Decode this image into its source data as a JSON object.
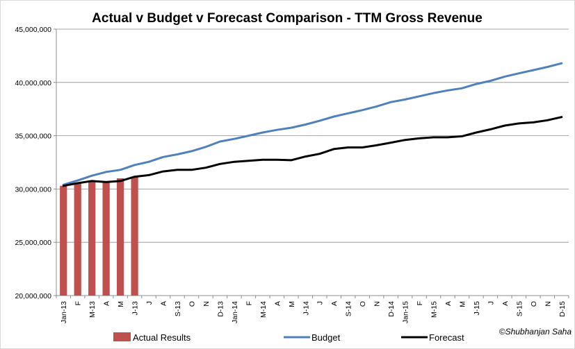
{
  "chart_data": {
    "type": "bar+line",
    "title": "Actual v Budget v Forecast Comparison - TTM Gross Revenue",
    "credit": "©Shubhanjan Saha",
    "ylim": [
      20000000,
      45000000
    ],
    "yticks": [
      "20,000,000",
      "25,000,000",
      "30,000,000",
      "35,000,000",
      "40,000,000",
      "45,000,000"
    ],
    "ytick_values": [
      20000000,
      25000000,
      30000000,
      35000000,
      40000000,
      45000000
    ],
    "grid": true,
    "legend_position": "bottom",
    "categories": [
      "Jan-13",
      "F",
      "M-13",
      "A",
      "M",
      "J-13",
      "J",
      "A",
      "S-13",
      "O",
      "N",
      "D-13",
      "Jan-14",
      "F",
      "M-14",
      "A",
      "M",
      "J-14",
      "J",
      "A",
      "S-14",
      "O",
      "N",
      "D-14",
      "Jan-15",
      "F",
      "M-15",
      "A",
      "M",
      "J-15",
      "J",
      "A",
      "S-15",
      "O",
      "N",
      "D-15"
    ],
    "series": [
      {
        "name": "Actual Results",
        "kind": "bar",
        "color": "#c0504d",
        "values": [
          30300000,
          30550000,
          30800000,
          30750000,
          31000000,
          31150000,
          null,
          null,
          null,
          null,
          null,
          null,
          null,
          null,
          null,
          null,
          null,
          null,
          null,
          null,
          null,
          null,
          null,
          null,
          null,
          null,
          null,
          null,
          null,
          null,
          null,
          null,
          null,
          null,
          null,
          null
        ]
      },
      {
        "name": "Budget",
        "kind": "line",
        "color": "#4f81bd",
        "values": [
          30400000,
          30800000,
          31250000,
          31600000,
          31800000,
          32250000,
          32550000,
          33000000,
          33250000,
          33550000,
          33950000,
          34450000,
          34700000,
          35000000,
          35300000,
          35550000,
          35750000,
          36050000,
          36400000,
          36800000,
          37100000,
          37400000,
          37750000,
          38150000,
          38400000,
          38700000,
          39000000,
          39250000,
          39450000,
          39850000,
          40150000,
          40550000,
          40850000,
          41150000,
          41450000,
          41800000
        ]
      },
      {
        "name": "Forecast",
        "kind": "line",
        "color": "#000000",
        "values": [
          30300000,
          30550000,
          30750000,
          30650000,
          30750000,
          31150000,
          31300000,
          31650000,
          31800000,
          31800000,
          32000000,
          32350000,
          32550000,
          32650000,
          32750000,
          32750000,
          32700000,
          33050000,
          33300000,
          33750000,
          33900000,
          33900000,
          34100000,
          34350000,
          34600000,
          34750000,
          34850000,
          34850000,
          34950000,
          35300000,
          35600000,
          35950000,
          36150000,
          36250000,
          36450000,
          36750000
        ]
      }
    ]
  }
}
